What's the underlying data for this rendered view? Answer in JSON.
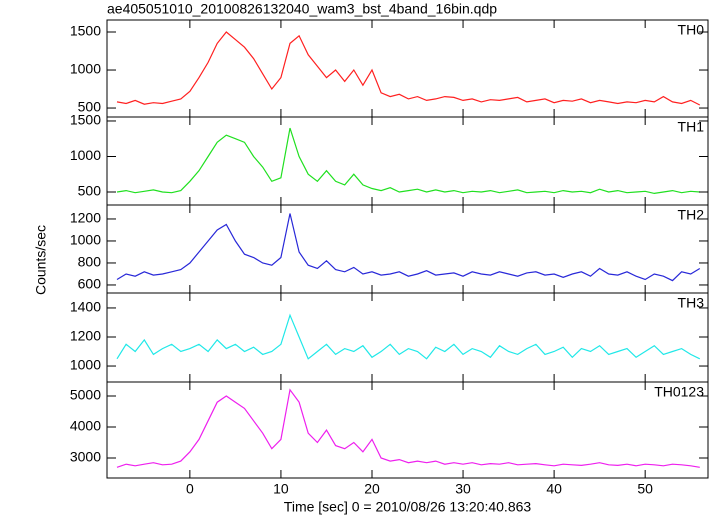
{
  "chart_data": [
    {
      "type": "line",
      "title": "ae405051010_20100826132040_wam3_bst_4band_16bin.qdp",
      "label": "TH0",
      "color": "#ff2020",
      "x": [
        -8,
        -7,
        -6,
        -5,
        -4,
        -3,
        -2,
        -1,
        0,
        1,
        2,
        3,
        4,
        5,
        6,
        7,
        8,
        9,
        10,
        11,
        12,
        13,
        14,
        15,
        16,
        17,
        18,
        19,
        20,
        21,
        22,
        23,
        24,
        25,
        26,
        27,
        28,
        29,
        30,
        31,
        32,
        33,
        34,
        35,
        36,
        37,
        38,
        39,
        40,
        41,
        42,
        43,
        44,
        45,
        46,
        47,
        48,
        49,
        50,
        51,
        52,
        53,
        54,
        55,
        56
      ],
      "values": [
        580,
        560,
        600,
        550,
        570,
        560,
        590,
        620,
        720,
        900,
        1100,
        1350,
        1500,
        1400,
        1300,
        1150,
        950,
        750,
        900,
        1350,
        1450,
        1200,
        1050,
        900,
        1000,
        850,
        1000,
        800,
        1000,
        700,
        650,
        680,
        620,
        650,
        600,
        620,
        650,
        640,
        600,
        620,
        580,
        610,
        600,
        620,
        640,
        580,
        600,
        620,
        570,
        600,
        590,
        620,
        570,
        600,
        580,
        560,
        580,
        570,
        600,
        580,
        650,
        580,
        560,
        600,
        540
      ],
      "xlim": [
        -9.1,
        56.9
      ],
      "xticks": [
        0,
        10,
        20,
        30,
        40,
        50
      ],
      "ylim": [
        382,
        1658
      ],
      "yticks": [
        500,
        1000,
        1500
      ]
    },
    {
      "type": "line",
      "label": "TH1",
      "color": "#20e020",
      "x": [
        -8,
        -7,
        -6,
        -5,
        -4,
        -3,
        -2,
        -1,
        0,
        1,
        2,
        3,
        4,
        5,
        6,
        7,
        8,
        9,
        10,
        11,
        12,
        13,
        14,
        15,
        16,
        17,
        18,
        19,
        20,
        21,
        22,
        23,
        24,
        25,
        26,
        27,
        28,
        29,
        30,
        31,
        32,
        33,
        34,
        35,
        36,
        37,
        38,
        39,
        40,
        41,
        42,
        43,
        44,
        45,
        46,
        47,
        48,
        49,
        50,
        51,
        52,
        53,
        54,
        55,
        56
      ],
      "values": [
        500,
        520,
        490,
        510,
        530,
        500,
        490,
        520,
        650,
        800,
        1000,
        1200,
        1300,
        1250,
        1200,
        1000,
        850,
        650,
        700,
        1400,
        1000,
        750,
        650,
        800,
        650,
        600,
        750,
        600,
        550,
        520,
        560,
        500,
        520,
        540,
        500,
        530,
        500,
        520,
        490,
        510,
        500,
        520,
        490,
        510,
        530,
        490,
        500,
        510,
        490,
        520,
        500,
        510,
        490,
        540,
        500,
        520,
        490,
        500,
        510,
        480,
        500,
        520,
        490,
        510,
        500
      ],
      "xlim": [
        -9.1,
        56.9
      ],
      "xticks": [
        0,
        10,
        20,
        30,
        40,
        50
      ],
      "ylim": [
        317,
        1556
      ],
      "yticks": [
        500,
        1000,
        1500
      ]
    },
    {
      "type": "line",
      "label": "TH2",
      "color": "#2828d8",
      "y_label": "Counts/sec",
      "x": [
        -8,
        -7,
        -6,
        -5,
        -4,
        -3,
        -2,
        -1,
        0,
        1,
        2,
        3,
        4,
        5,
        6,
        7,
        8,
        9,
        10,
        11,
        12,
        13,
        14,
        15,
        16,
        17,
        18,
        19,
        20,
        21,
        22,
        23,
        24,
        25,
        26,
        27,
        28,
        29,
        30,
        31,
        32,
        33,
        34,
        35,
        36,
        37,
        38,
        39,
        40,
        41,
        42,
        43,
        44,
        45,
        46,
        47,
        48,
        49,
        50,
        51,
        52,
        53,
        54,
        55,
        56
      ],
      "values": [
        650,
        700,
        680,
        720,
        690,
        700,
        720,
        740,
        800,
        900,
        1000,
        1100,
        1150,
        1000,
        880,
        850,
        800,
        780,
        850,
        1250,
        900,
        780,
        750,
        820,
        740,
        720,
        760,
        700,
        720,
        690,
        700,
        720,
        680,
        700,
        730,
        690,
        700,
        710,
        680,
        720,
        700,
        690,
        720,
        700,
        680,
        710,
        720,
        690,
        700,
        670,
        700,
        720,
        680,
        750,
        700,
        690,
        720,
        680,
        650,
        700,
        680,
        640,
        720,
        700,
        750
      ],
      "xlim": [
        -9.1,
        56.9
      ],
      "xticks": [
        0,
        10,
        20,
        30,
        40,
        50
      ],
      "ylim": [
        527,
        1327
      ],
      "yticks": [
        600,
        800,
        1000,
        1200
      ]
    },
    {
      "type": "line",
      "label": "TH3",
      "color": "#20e8e8",
      "x": [
        -8,
        -7,
        -6,
        -5,
        -4,
        -3,
        -2,
        -1,
        0,
        1,
        2,
        3,
        4,
        5,
        6,
        7,
        8,
        9,
        10,
        11,
        12,
        13,
        14,
        15,
        16,
        17,
        18,
        19,
        20,
        21,
        22,
        23,
        24,
        25,
        26,
        27,
        28,
        29,
        30,
        31,
        32,
        33,
        34,
        35,
        36,
        37,
        38,
        39,
        40,
        41,
        42,
        43,
        44,
        45,
        46,
        47,
        48,
        49,
        50,
        51,
        52,
        53,
        54,
        55,
        56
      ],
      "values": [
        1050,
        1150,
        1100,
        1180,
        1080,
        1120,
        1150,
        1100,
        1120,
        1150,
        1100,
        1180,
        1120,
        1150,
        1100,
        1130,
        1080,
        1100,
        1150,
        1350,
        1200,
        1050,
        1100,
        1150,
        1080,
        1120,
        1100,
        1140,
        1060,
        1100,
        1150,
        1080,
        1120,
        1100,
        1050,
        1130,
        1100,
        1150,
        1080,
        1120,
        1100,
        1060,
        1140,
        1100,
        1080,
        1120,
        1150,
        1080,
        1100,
        1130,
        1060,
        1120,
        1100,
        1140,
        1080,
        1100,
        1120,
        1060,
        1100,
        1140,
        1080,
        1100,
        1120,
        1080,
        1050
      ],
      "xlim": [
        -9.1,
        56.9
      ],
      "xticks": [
        0,
        10,
        20,
        30,
        40,
        50
      ],
      "ylim": [
        890,
        1503
      ],
      "yticks": [
        1000,
        1200,
        1400
      ]
    },
    {
      "type": "line",
      "label": "TH0123",
      "color": "#ee20ee",
      "x_label": "Time [sec] 0 = 2010/08/26 13:20:40.863",
      "x": [
        -8,
        -7,
        -6,
        -5,
        -4,
        -3,
        -2,
        -1,
        0,
        1,
        2,
        3,
        4,
        5,
        6,
        7,
        8,
        9,
        10,
        11,
        12,
        13,
        14,
        15,
        16,
        17,
        18,
        19,
        20,
        21,
        22,
        23,
        24,
        25,
        26,
        27,
        28,
        29,
        30,
        31,
        32,
        33,
        34,
        35,
        36,
        37,
        38,
        39,
        40,
        41,
        42,
        43,
        44,
        45,
        46,
        47,
        48,
        49,
        50,
        51,
        52,
        53,
        54,
        55,
        56
      ],
      "values": [
        2700,
        2800,
        2750,
        2800,
        2850,
        2780,
        2800,
        2900,
        3200,
        3600,
        4200,
        4800,
        5000,
        4800,
        4600,
        4200,
        3800,
        3300,
        3600,
        5200,
        4800,
        3800,
        3500,
        3900,
        3400,
        3300,
        3500,
        3200,
        3600,
        3000,
        2900,
        2950,
        2850,
        2900,
        2850,
        2900,
        2800,
        2850,
        2800,
        2850,
        2780,
        2820,
        2800,
        2850,
        2780,
        2800,
        2820,
        2780,
        2750,
        2800,
        2780,
        2760,
        2800,
        2850,
        2780,
        2760,
        2800,
        2750,
        2800,
        2780,
        2750,
        2800,
        2780,
        2750,
        2700
      ],
      "xlim": [
        -9.1,
        56.9
      ],
      "xticks": [
        0,
        10,
        20,
        30,
        40,
        50
      ],
      "ylim": [
        2355,
        5452
      ],
      "yticks": [
        3000,
        4000,
        5000
      ]
    }
  ]
}
